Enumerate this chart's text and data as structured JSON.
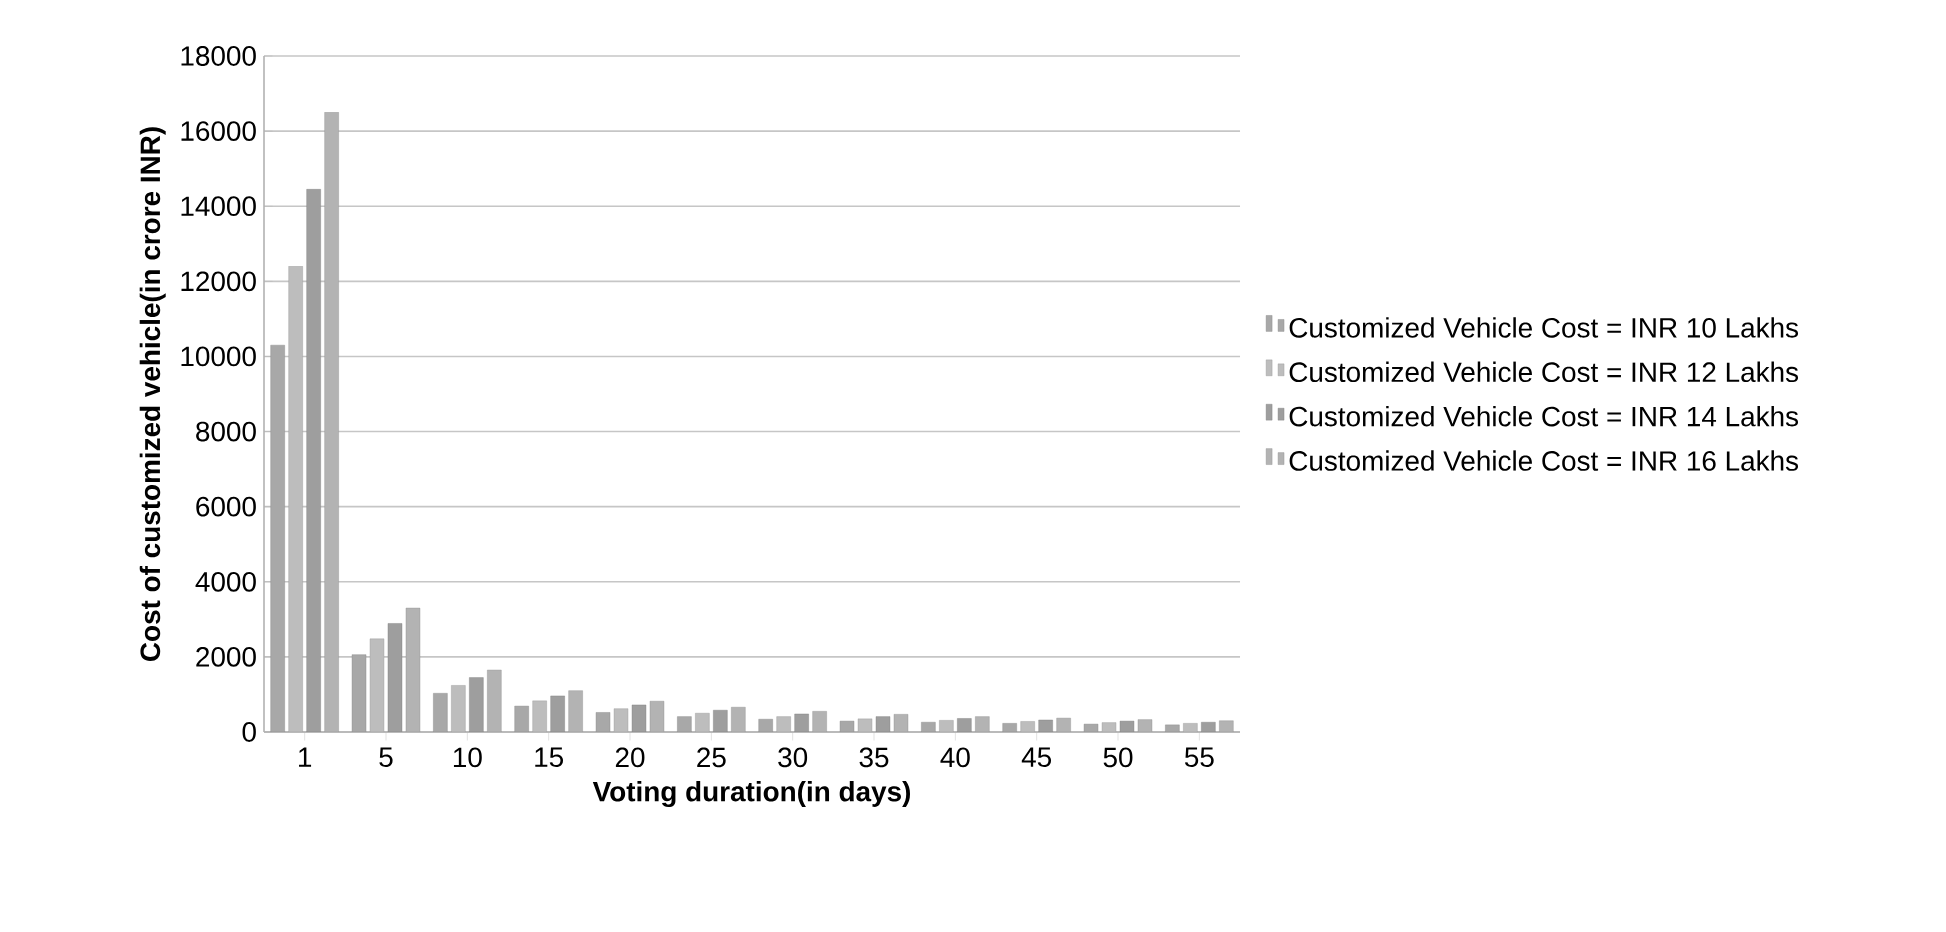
{
  "chart_data": {
    "type": "bar",
    "xlabel": "Voting duration(in days)",
    "ylabel": "Cost of customized vehicle(in crore INR)",
    "categories": [
      "1",
      "5",
      "10",
      "15",
      "20",
      "25",
      "30",
      "35",
      "40",
      "45",
      "50",
      "55"
    ],
    "series": [
      {
        "name": "Customized Vehicle Cost = INR 10 Lakhs",
        "color": "#a8a8a8",
        "values": [
          10300,
          2060,
          1030,
          690,
          520,
          410,
          340,
          290,
          260,
          230,
          210,
          190
        ]
      },
      {
        "name": "Customized Vehicle Cost = INR 12 Lakhs",
        "color": "#bdbdbd",
        "values": [
          12400,
          2480,
          1240,
          830,
          620,
          500,
          410,
          350,
          310,
          280,
          250,
          230
        ]
      },
      {
        "name": "Customized Vehicle Cost = INR 14 Lakhs",
        "color": "#9e9e9e",
        "values": [
          14450,
          2890,
          1450,
          960,
          720,
          580,
          480,
          410,
          360,
          320,
          290,
          260
        ]
      },
      {
        "name": "Customized Vehicle Cost = INR 16 Lakhs",
        "color": "#b3b3b3",
        "values": [
          16500,
          3300,
          1650,
          1100,
          820,
          660,
          550,
          470,
          410,
          370,
          330,
          300
        ]
      }
    ],
    "ylim": [
      0,
      18000
    ],
    "yticks": [
      0,
      2000,
      4000,
      6000,
      8000,
      10000,
      12000,
      14000,
      16000,
      18000
    ],
    "grid": "y",
    "legend": "right"
  }
}
